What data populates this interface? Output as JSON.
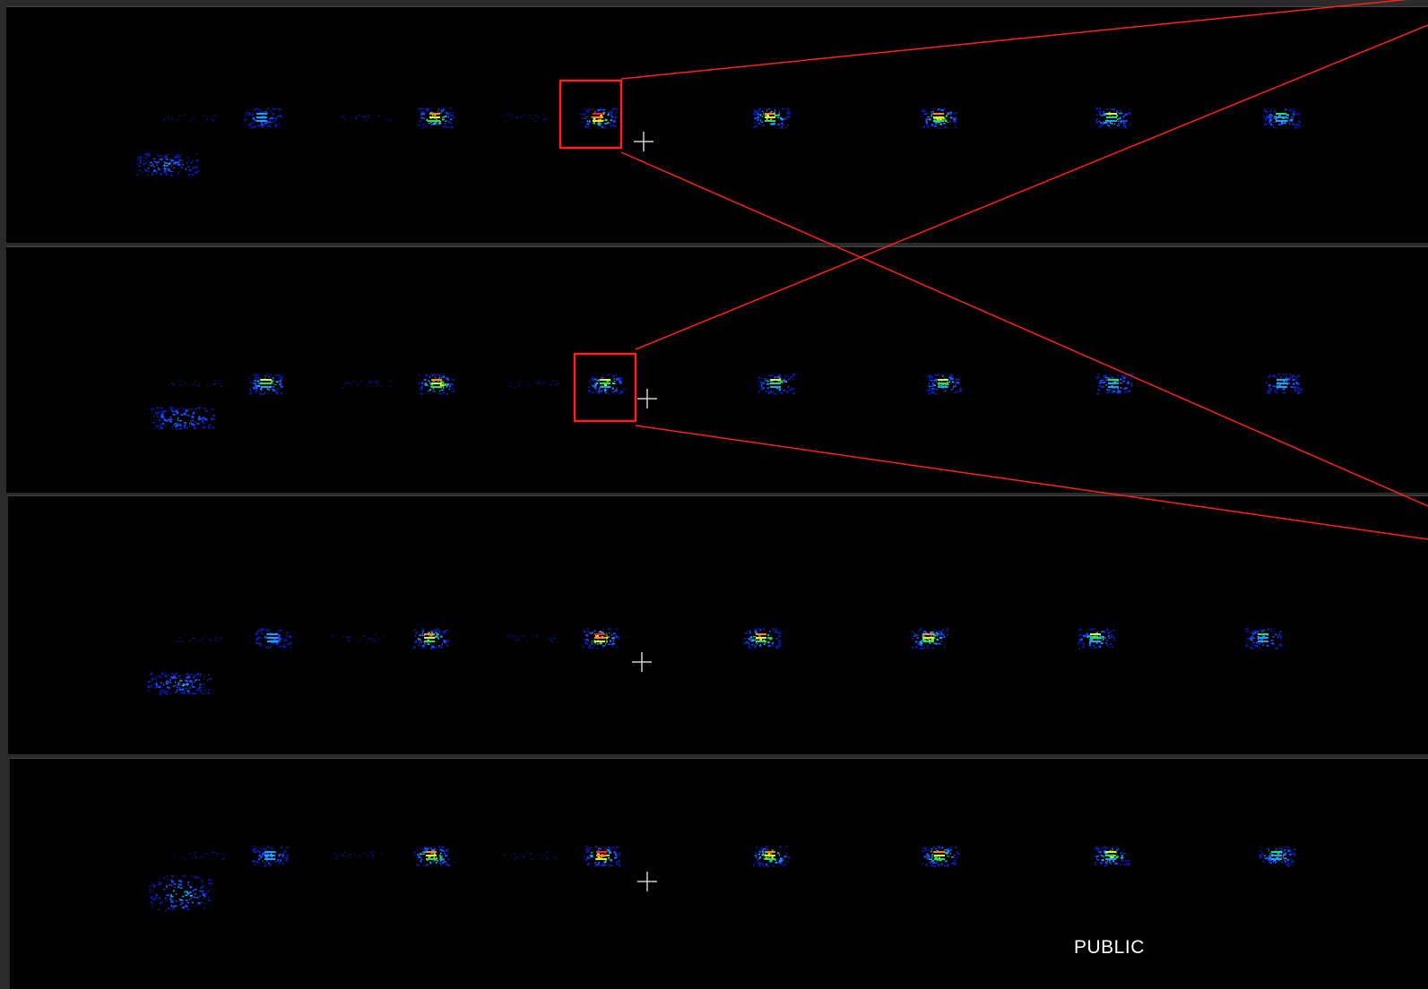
{
  "classification": "PUBLIC",
  "colors": {
    "background": "#2b2b2b",
    "panel": "#000000",
    "highlight": "#ff2020",
    "crosshair": "#d0d0d0",
    "colormap": [
      "#0a1aa8",
      "#1a4dff",
      "#1ea0ff",
      "#20e070",
      "#f0f020",
      "#ff8a10",
      "#ff2020"
    ]
  },
  "icons": {
    "crosshair": "crosshair-icon",
    "highlight_box": "highlight-box"
  },
  "panels": [
    {
      "id": "panel-1",
      "peak_levels": [
        0.3,
        0.25,
        0.85,
        0.95,
        0.9,
        0.8,
        0.65,
        0.55
      ]
    },
    {
      "id": "panel-2",
      "peak_levels": [
        0.35,
        0.7,
        0.8,
        0.7,
        0.65,
        0.6,
        0.55,
        0.4
      ]
    },
    {
      "id": "panel-3",
      "peak_levels": [
        0.35,
        0.2,
        0.75,
        0.95,
        0.85,
        0.75,
        0.6,
        0.45
      ]
    },
    {
      "id": "panel-4",
      "peak_levels": [
        0.4,
        0.35,
        0.9,
        0.95,
        0.85,
        0.8,
        0.7,
        0.5
      ]
    }
  ]
}
